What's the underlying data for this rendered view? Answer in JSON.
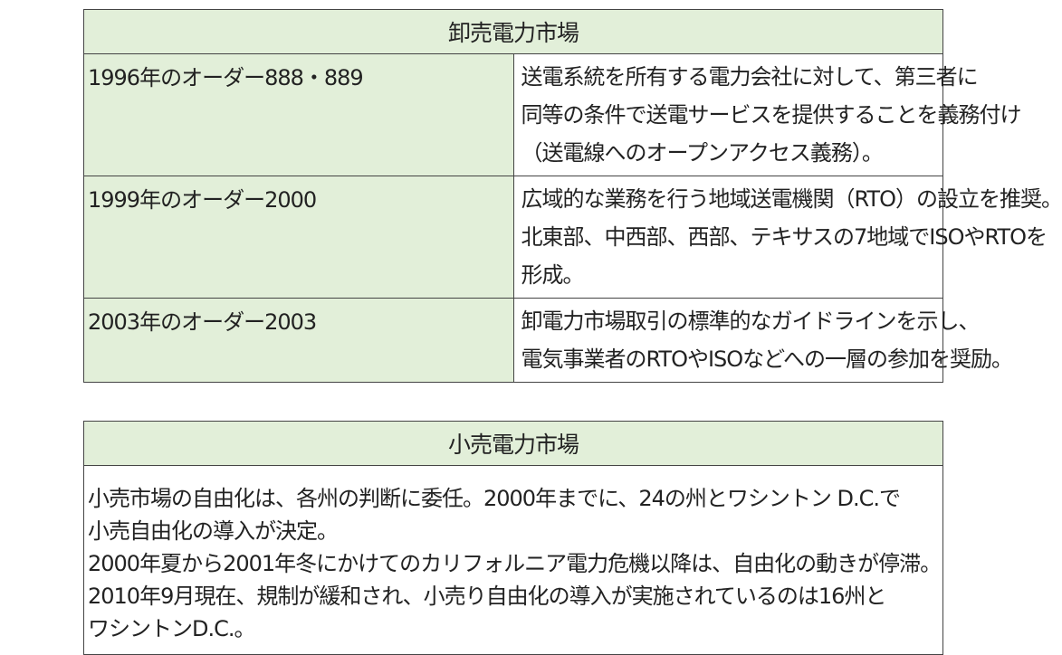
{
  "wholesale": {
    "title": "卸売電力市場",
    "rows": [
      {
        "label": "1996年のオーダー888・889",
        "lines": [
          "送電系統を所有する電力会社に対して、第三者に",
          "同等の条件で送電サービスを提供することを義務付け",
          "（送電線へのオープンアクセス義務）。"
        ]
      },
      {
        "label": "1999年のオーダー2000",
        "lines": [
          "広域的な業務を行う地域送電機関（RTO）の設立を推奨。",
          "北東部、中西部、西部、テキサスの7地域でISOやRTOを",
          "形成。"
        ]
      },
      {
        "label": "2003年のオーダー2003",
        "lines": [
          "卸電力市場取引の標準的なガイドラインを示し、",
          "電気事業者のRTOやISOなどへの一層の参加を奨励。"
        ]
      }
    ]
  },
  "retail": {
    "title": "小売電力市場",
    "lines": [
      "小売市場の自由化は、各州の判断に委任。2000年までに、24の州とワシントン D.C.で",
      "小売自由化の導入が決定。",
      "2000年夏から2001年冬にかけてのカリフォルニア電力危機以降は、自由化の動きが停滞。",
      "2010年9月現在、規制が緩和され、小売り自由化の導入が実施されているのは16州と",
      "ワシントンD.C.。"
    ]
  },
  "colors": {
    "header_bg": "#e2efd9",
    "border": "#444444"
  }
}
